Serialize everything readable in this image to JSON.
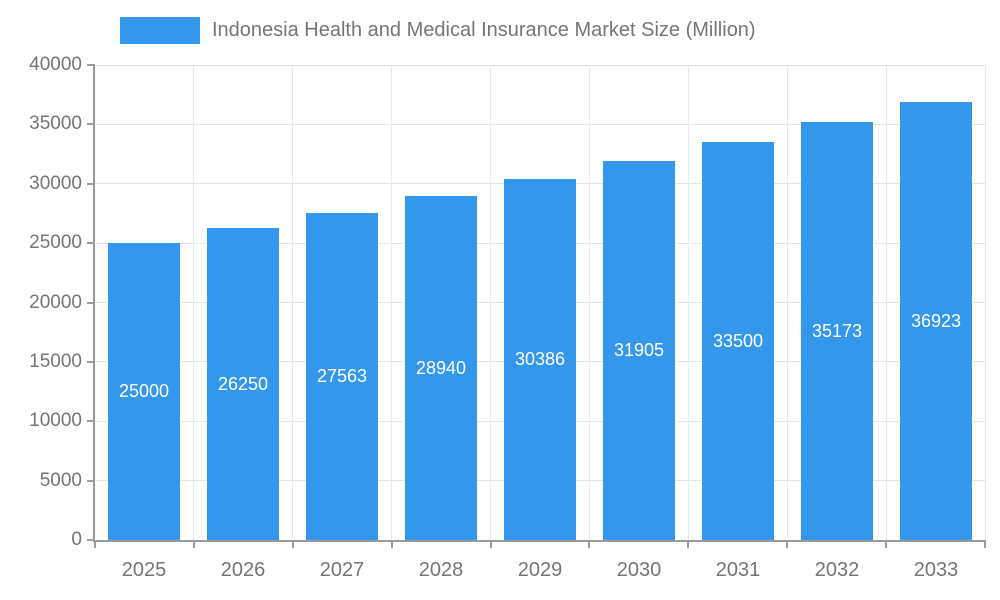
{
  "legend": {
    "label": "Indonesia Health and Medical Insurance Market Size (Million)",
    "swatch_color": "#3398EC"
  },
  "chart_data": {
    "type": "bar",
    "title": "Indonesia Health and Medical Insurance Market Size (Million)",
    "categories": [
      "2025",
      "2026",
      "2027",
      "2028",
      "2029",
      "2030",
      "2031",
      "2032",
      "2033"
    ],
    "values": [
      25000,
      26250,
      27563,
      28940,
      30386,
      31905,
      33500,
      35173,
      36923
    ],
    "xlabel": "",
    "ylabel": "",
    "ylim": [
      0,
      40000
    ],
    "ytick_step": 5000,
    "ytick_labels": [
      "0",
      "5000",
      "10000",
      "15000",
      "20000",
      "25000",
      "30000",
      "35000",
      "40000"
    ],
    "grid": true,
    "legend_position": "top",
    "bar_color": "#3398EC",
    "value_label_color": "#ffffff",
    "axis_text_color": "#757575"
  }
}
